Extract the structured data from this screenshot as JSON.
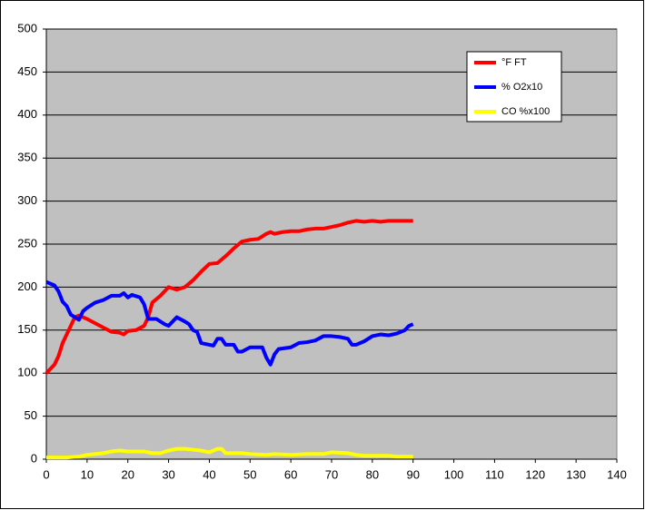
{
  "chart_data": {
    "type": "line",
    "xlim": [
      0,
      140
    ],
    "xticks": [
      0,
      10,
      20,
      30,
      40,
      50,
      60,
      70,
      80,
      90,
      100,
      110,
      120,
      130,
      140
    ],
    "ylim": [
      0,
      500
    ],
    "yticks": [
      0,
      50,
      100,
      150,
      200,
      250,
      300,
      350,
      400,
      450,
      500
    ],
    "grid": true,
    "legend": "upper-right",
    "series": [
      {
        "name": "°F FT",
        "color": "#ff0000",
        "x": [
          0,
          1,
          2,
          3,
          4,
          5,
          6,
          7,
          8,
          10,
          12,
          14,
          16,
          18,
          19,
          20,
          22,
          24,
          25,
          26,
          28,
          30,
          32,
          34,
          36,
          38,
          40,
          42,
          44,
          46,
          48,
          50,
          52,
          54,
          55,
          56,
          58,
          60,
          62,
          64,
          66,
          68,
          70,
          72,
          74,
          76,
          78,
          80,
          82,
          84,
          86,
          88,
          90
        ],
        "values": [
          100,
          105,
          110,
          120,
          135,
          145,
          155,
          165,
          167,
          163,
          158,
          153,
          148,
          147,
          145,
          149,
          150,
          155,
          165,
          182,
          190,
          200,
          197,
          200,
          208,
          218,
          227,
          228,
          236,
          245,
          253,
          255,
          256,
          262,
          264,
          262,
          264,
          265,
          265,
          267,
          268,
          268,
          270,
          272,
          275,
          277,
          276,
          277,
          276,
          277,
          277,
          277,
          277
        ]
      },
      {
        "name": "% O2x10",
        "color": "#0000ff",
        "x": [
          0,
          2,
          3,
          4,
          5,
          6,
          7,
          8,
          9,
          10,
          12,
          14,
          16,
          18,
          19,
          20,
          21,
          23,
          24,
          25,
          27,
          29,
          30,
          32,
          34,
          35,
          36,
          37,
          38,
          40,
          41,
          42,
          43,
          44,
          46,
          47,
          48,
          50,
          52,
          53,
          54,
          55,
          56,
          57,
          60,
          62,
          64,
          66,
          68,
          70,
          72,
          74,
          75,
          76,
          78,
          80,
          82,
          84,
          86,
          88,
          89,
          90
        ],
        "values": [
          206,
          202,
          195,
          183,
          178,
          168,
          165,
          162,
          172,
          176,
          182,
          185,
          190,
          190,
          193,
          188,
          191,
          188,
          180,
          163,
          163,
          157,
          155,
          165,
          160,
          157,
          150,
          148,
          135,
          133,
          132,
          140,
          140,
          133,
          133,
          125,
          125,
          130,
          130,
          130,
          118,
          110,
          122,
          128,
          130,
          135,
          136,
          138,
          143,
          143,
          142,
          140,
          133,
          133,
          137,
          143,
          145,
          144,
          146,
          150,
          155,
          157
        ]
      },
      {
        "name": "CO %x100",
        "color": "#ffff00",
        "x": [
          0,
          5,
          8,
          10,
          14,
          16,
          18,
          20,
          24,
          26,
          28,
          30,
          32,
          34,
          36,
          38,
          40,
          42,
          43,
          44,
          46,
          48,
          50,
          54,
          56,
          60,
          64,
          68,
          70,
          74,
          76,
          78,
          80,
          84,
          86,
          90
        ],
        "values": [
          2,
          2,
          3,
          5,
          7,
          9,
          10,
          9,
          9,
          7,
          7,
          10,
          12,
          12,
          11,
          10,
          8,
          12,
          12,
          7,
          7,
          7,
          6,
          5,
          6,
          5,
          6,
          6,
          8,
          7,
          5,
          4,
          4,
          4,
          3,
          3
        ]
      }
    ]
  }
}
